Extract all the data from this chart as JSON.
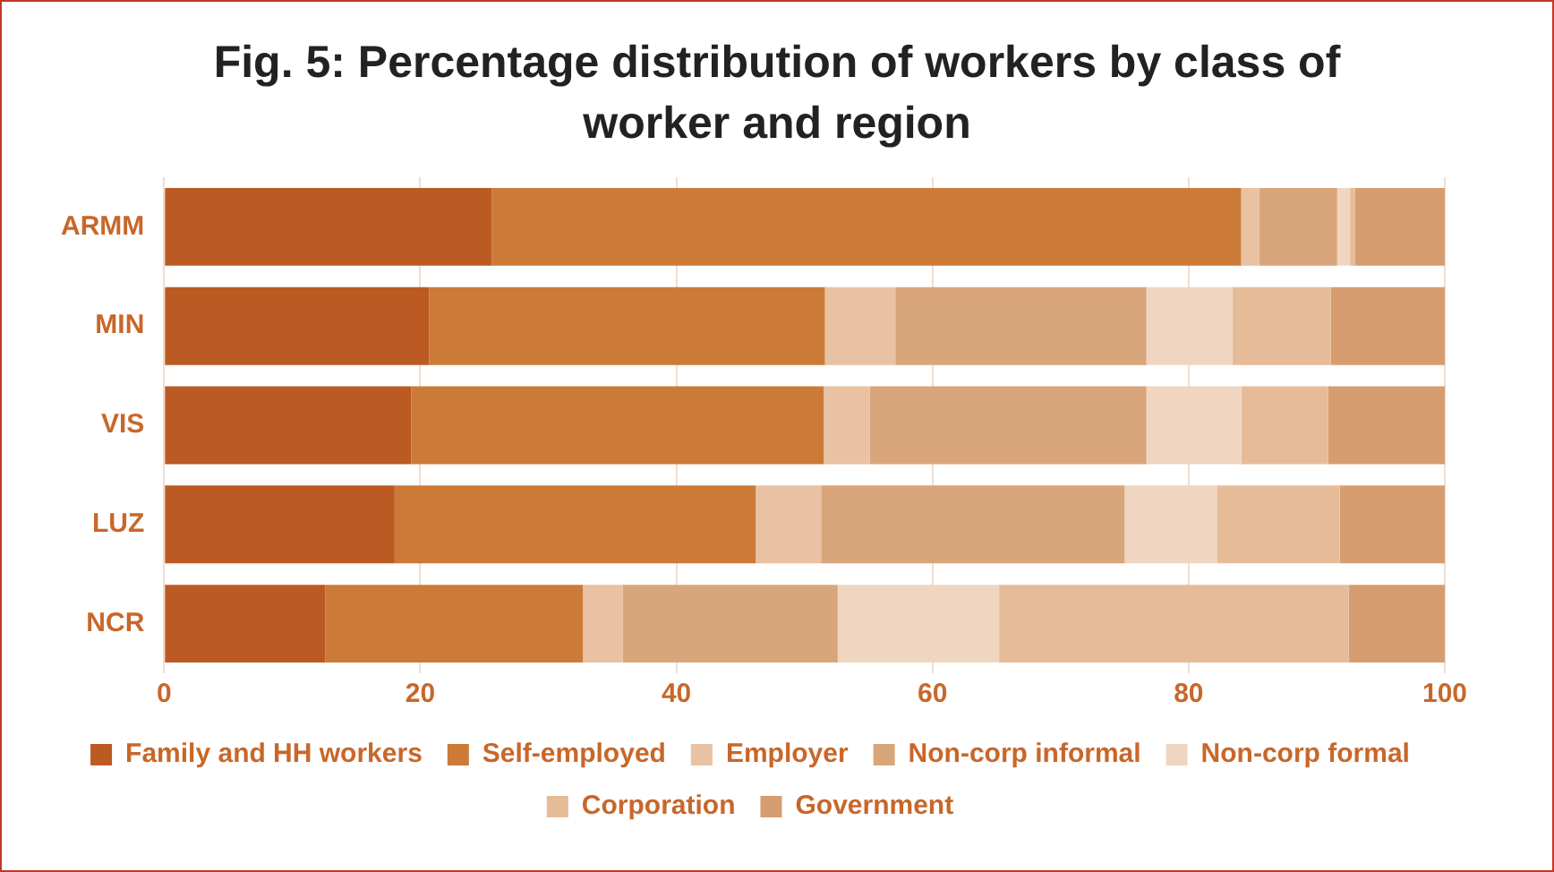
{
  "chart_data": {
    "type": "bar",
    "orientation": "horizontal",
    "stacked": true,
    "title": "Fig. 5: Percentage distribution of workers by class of worker and region",
    "categories": [
      "ARMM",
      "MIN",
      "VIS",
      "LUZ",
      "NCR"
    ],
    "series": [
      {
        "name": "Family and HH workers",
        "color": "#bc5a24",
        "values": [
          25.6,
          20.7,
          19.3,
          18.0,
          12.6
        ]
      },
      {
        "name": "Self-employed",
        "color": "#cc7a37",
        "values": [
          58.5,
          30.9,
          32.2,
          28.2,
          20.1
        ]
      },
      {
        "name": "Employer",
        "color": "#e8c2a2",
        "values": [
          1.4,
          5.5,
          3.6,
          5.1,
          3.1
        ]
      },
      {
        "name": "Non-corp informal",
        "color": "#d9a57a",
        "values": [
          6.1,
          19.6,
          21.6,
          23.7,
          16.8
        ]
      },
      {
        "name": "Non-corp formal",
        "color": "#f0d6c0",
        "values": [
          1.0,
          6.7,
          7.4,
          7.2,
          12.6
        ]
      },
      {
        "name": "Corporation",
        "color": "#e6bc98",
        "values": [
          0.4,
          7.7,
          6.8,
          9.6,
          27.3
        ]
      },
      {
        "name": "Government",
        "color": "#d69d70",
        "values": [
          7.0,
          8.9,
          9.1,
          8.2,
          7.5
        ]
      }
    ],
    "xlim": [
      0,
      100
    ],
    "xticks": [
      0,
      20,
      40,
      60,
      80,
      100
    ],
    "grid": "x",
    "legend": "bottom"
  }
}
